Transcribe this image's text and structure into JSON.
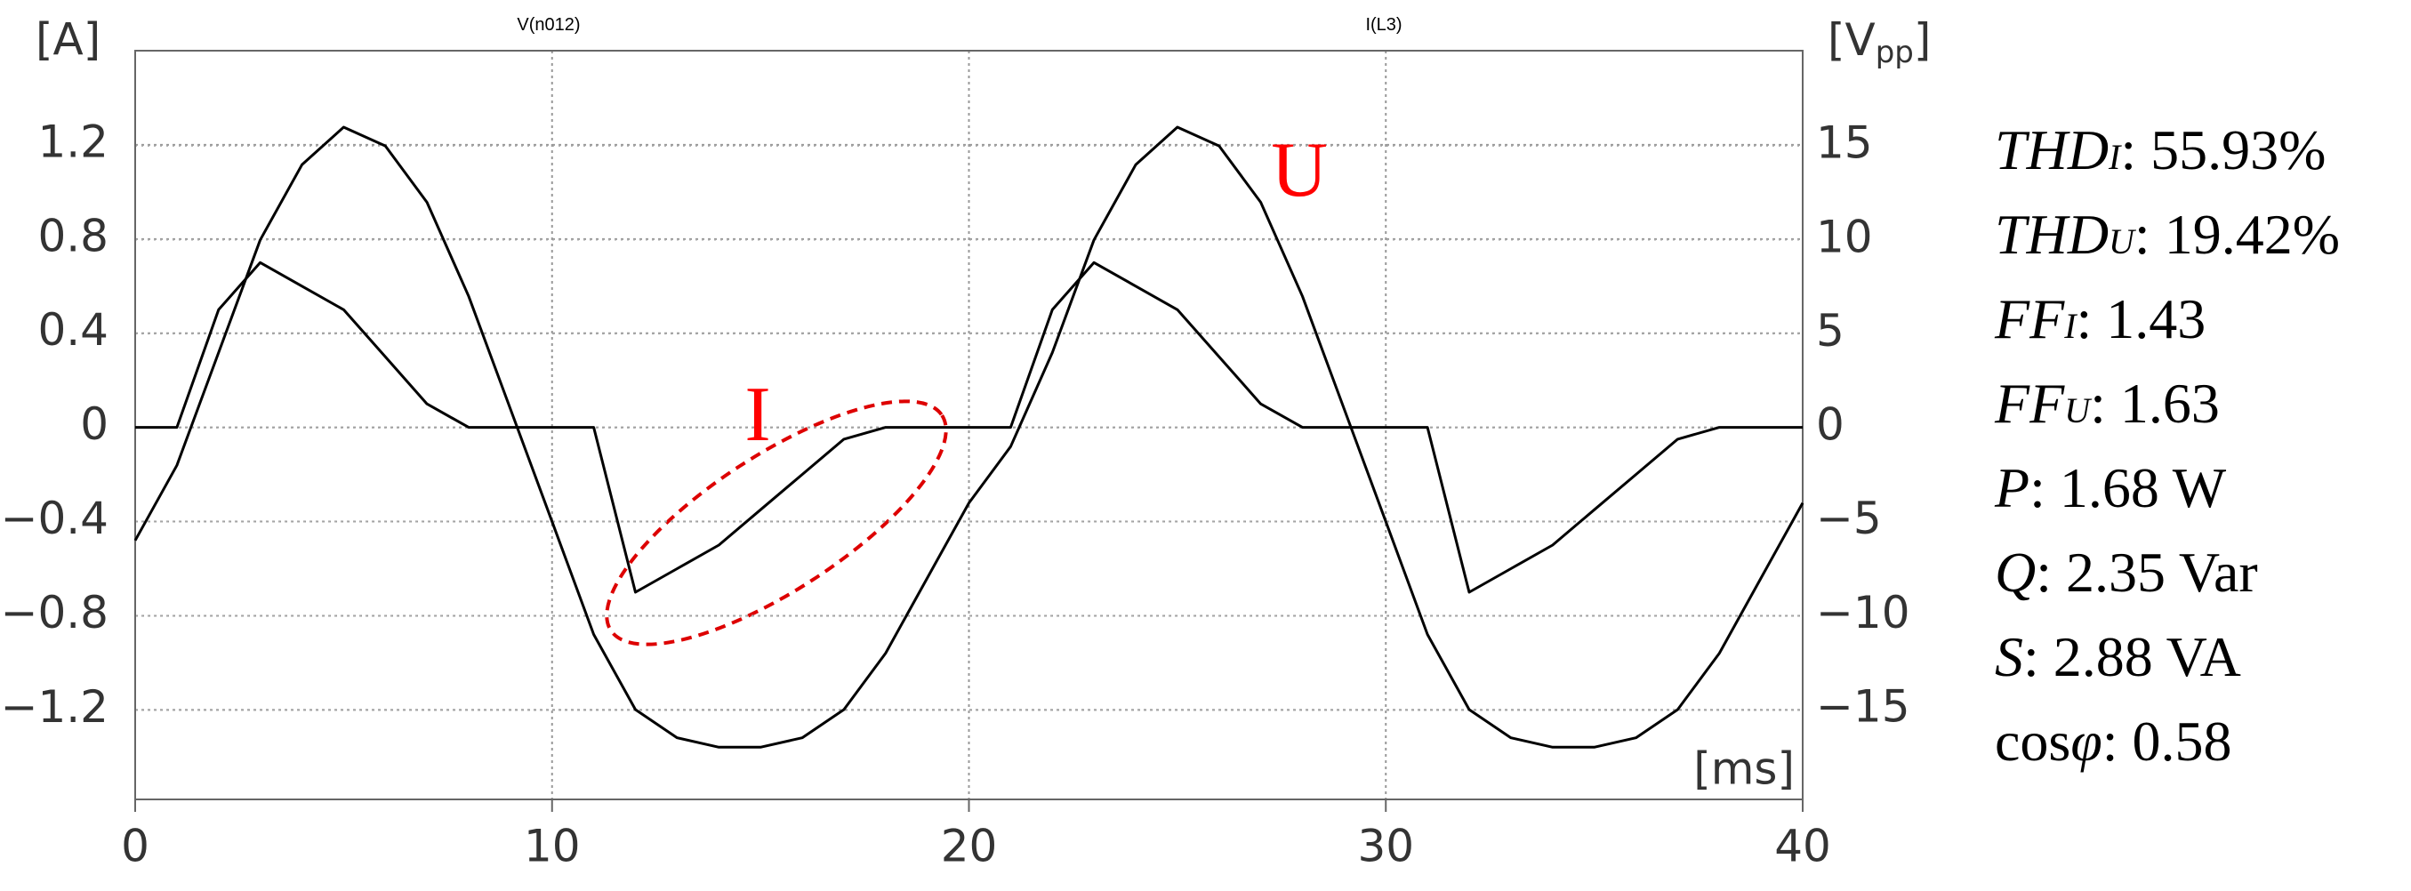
{
  "chart_data": {
    "type": "line",
    "ylabel": "[A]",
    "y2label": [
      "[V",
      "pp",
      "]"
    ],
    "xlabel": "[ms]",
    "xlim": [
      0,
      40
    ],
    "xticks": [
      0,
      10,
      20,
      30,
      40
    ],
    "ylim": [
      -1.58,
      1.6
    ],
    "yticks": [
      1.2,
      0.8,
      0.4,
      0,
      {
        "value": -0.4,
        "label": "−0.4"
      },
      {
        "value": -0.8,
        "label": "−0.8"
      },
      {
        "value": -1.2,
        "label": "−1.2"
      }
    ],
    "y2lim": [
      -19.78,
      20.07
    ],
    "y2ticks": [
      15,
      10,
      5,
      0,
      {
        "value": -5,
        "label": "−5"
      },
      {
        "value": -10,
        "label": "−10"
      },
      {
        "value": -15,
        "label": "−15"
      }
    ],
    "grid": true,
    "x": [
      0,
      1,
      2,
      3,
      4,
      5,
      6,
      7,
      8,
      9,
      10,
      11,
      12,
      13,
      14,
      15,
      16,
      17,
      18,
      19,
      20,
      21,
      22,
      23,
      24,
      25,
      26,
      27,
      28,
      29,
      30,
      31,
      32,
      33,
      34,
      35,
      36,
      37,
      38,
      39,
      40
    ],
    "series": [
      {
        "name": "V(n012)",
        "color": "#000000",
        "axis": "y2",
        "values": [
          -6,
          -2,
          4,
          10,
          14,
          16,
          15,
          12,
          7,
          1,
          -5,
          -11,
          -15,
          -16.5,
          -17,
          -17,
          -16.5,
          -15,
          -12,
          -8,
          -4,
          -1,
          4,
          10,
          14,
          16,
          15,
          12,
          7,
          1,
          -5,
          -11,
          -15,
          -16.5,
          -17,
          -17,
          -16.5,
          -15,
          -12,
          -8,
          -4
        ]
      },
      {
        "name": "I(L3)",
        "color": "#000000",
        "values": [
          0,
          0,
          0.5,
          0.7,
          0.6,
          0.5,
          0.3,
          0.1,
          0,
          0,
          0,
          0,
          -0.7,
          -0.6,
          -0.5,
          -0.35,
          -0.2,
          -0.05,
          0,
          0,
          0,
          0,
          0.5,
          0.7,
          0.6,
          0.5,
          0.3,
          0.1,
          0,
          0,
          0,
          0,
          -0.7,
          -0.6,
          -0.5,
          -0.35,
          -0.2,
          -0.05,
          0,
          0,
          0
        ]
      }
    ],
    "annotations": [
      {
        "text": "U",
        "color": "#ff0000"
      },
      {
        "text": "I",
        "color": "#ff0000"
      }
    ]
  },
  "stats": [
    {
      "symbol": "THD",
      "sub": "I",
      "text": ": 55.93%"
    },
    {
      "symbol": "THD",
      "sub": "U",
      "text": ": 19.42%"
    },
    {
      "symbol": "FF",
      "sub": "I",
      "text": ": 1.43"
    },
    {
      "symbol": "FF",
      "sub": "U",
      "text": ": 1.63"
    },
    {
      "symbol": "P",
      "text": ": 1.68 W"
    },
    {
      "symbol": "Q",
      "text": ": 2.35 Var"
    },
    {
      "symbol": "S",
      "text": ": 2.88 VA"
    },
    {
      "plain": "cos",
      "symbol": "φ",
      "text": ": 0.58"
    }
  ]
}
